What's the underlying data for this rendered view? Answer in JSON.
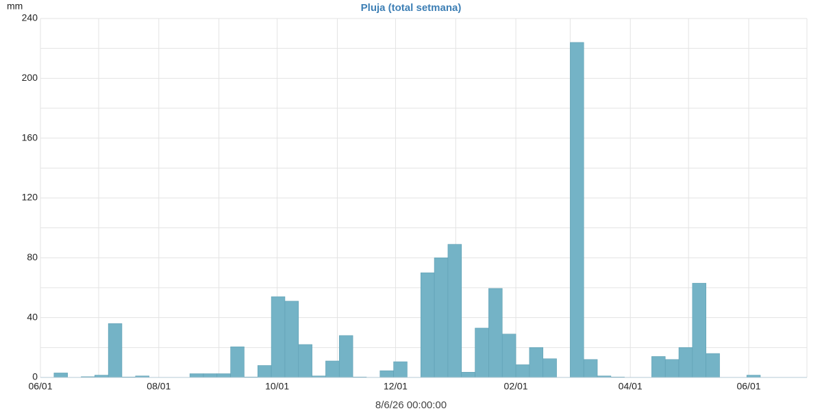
{
  "chart_data": {
    "type": "histogram",
    "title": "Pluja (total setmana)",
    "ylabel": "mm",
    "xlabel": "8/6/26 00:00:00",
    "bins": [
      0,
      7,
      14,
      21,
      28,
      35,
      42,
      49,
      56,
      63,
      70,
      77,
      84,
      91,
      98,
      105,
      112,
      119,
      126,
      133,
      140,
      147,
      154,
      161,
      168,
      175,
      182,
      189,
      196,
      203,
      210,
      217,
      224,
      231,
      238,
      245,
      252,
      259,
      266,
      273,
      280,
      287,
      294,
      301,
      308,
      315,
      322,
      329,
      336,
      343,
      350,
      357,
      364,
      371
    ],
    "values": [
      0,
      3,
      0,
      0.5,
      1.5,
      36,
      0.3,
      1,
      0,
      0,
      0,
      2.5,
      2.5,
      2.5,
      20.5,
      0.3,
      8,
      54,
      51,
      22,
      1,
      11,
      28,
      0.3,
      0,
      4.5,
      10.5,
      0,
      70,
      80,
      89,
      3.5,
      33,
      59.5,
      29,
      8.5,
      20,
      12.5,
      0,
      224,
      12,
      1,
      0.3,
      0,
      0,
      14,
      12,
      20,
      63,
      16,
      0,
      0,
      1.5
    ],
    "color": "#74b3c6",
    "xlim": [
      0,
      395
    ],
    "xticks": [
      {
        "value": 0,
        "label": "06/01"
      },
      {
        "value": 61,
        "label": "08/01"
      },
      {
        "value": 122,
        "label": "10/01"
      },
      {
        "value": 183,
        "label": "12/01"
      },
      {
        "value": 245,
        "label": "02/01"
      },
      {
        "value": 304,
        "label": "04/01"
      },
      {
        "value": 365,
        "label": "06/01"
      }
    ],
    "xminor": [
      30,
      92,
      153,
      214,
      273,
      334,
      395
    ],
    "ylim": [
      0,
      240
    ],
    "yticks": [
      0,
      40,
      80,
      120,
      160,
      200,
      240
    ],
    "yminor": [
      20,
      60,
      100,
      140,
      180,
      220
    ],
    "grid": true
  }
}
